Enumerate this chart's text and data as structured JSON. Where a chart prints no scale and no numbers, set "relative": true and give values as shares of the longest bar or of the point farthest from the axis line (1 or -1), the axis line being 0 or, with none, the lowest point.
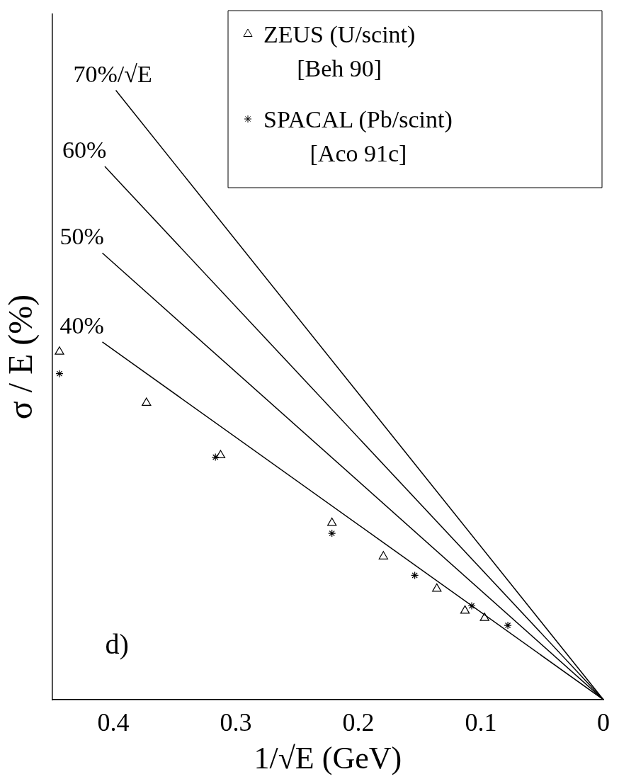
{
  "chart_data": {
    "type": "scatter",
    "relative": true,
    "xlabel": "1/√E (GeV)",
    "ylabel": "σ / E (%)",
    "xlim": [
      0.45,
      0
    ],
    "xticks": [
      0.4,
      0.3,
      0.2,
      0.1,
      0
    ],
    "legend": "top right",
    "grid": false,
    "annotations": [
      "d)"
    ],
    "series": [
      {
        "name": "70%/√E",
        "type": "line",
        "color": "#000000",
        "marker": "none",
        "x": [
          0.398,
          0
        ],
        "values": [
          1,
          0
        ]
      },
      {
        "name": "60%",
        "type": "line",
        "color": "#000000",
        "marker": "none",
        "x": [
          0.407,
          0
        ],
        "values": [
          0.875,
          0
        ]
      },
      {
        "name": "50%",
        "type": "line",
        "color": "#000000",
        "marker": "none",
        "x": [
          0.409,
          0
        ],
        "values": [
          0.733,
          0
        ]
      },
      {
        "name": "40%",
        "type": "line",
        "color": "#000000",
        "marker": "none",
        "x": [
          0.409,
          0
        ],
        "values": [
          0.587,
          0
        ]
      },
      {
        "name": "ZEUS (U/scint) [Beh 90]",
        "color": "#000000",
        "marker": "triangle",
        "x": [
          0.444,
          0.373,
          0.3125,
          0.2216,
          0.1796,
          0.136,
          0.113,
          0.097
        ],
        "values": [
          0.571,
          0.487,
          0.401,
          0.29,
          0.235,
          0.182,
          0.146,
          0.134
        ]
      },
      {
        "name": "SPACAL (Pb/scint) [Aco 91c]",
        "color": "#000000",
        "marker": "cross",
        "x": [
          0.444,
          0.3167,
          0.2216,
          0.154,
          0.1075,
          0.078
        ],
        "values": [
          0.535,
          0.398,
          0.273,
          0.204,
          0.154,
          0.122
        ]
      }
    ]
  }
}
